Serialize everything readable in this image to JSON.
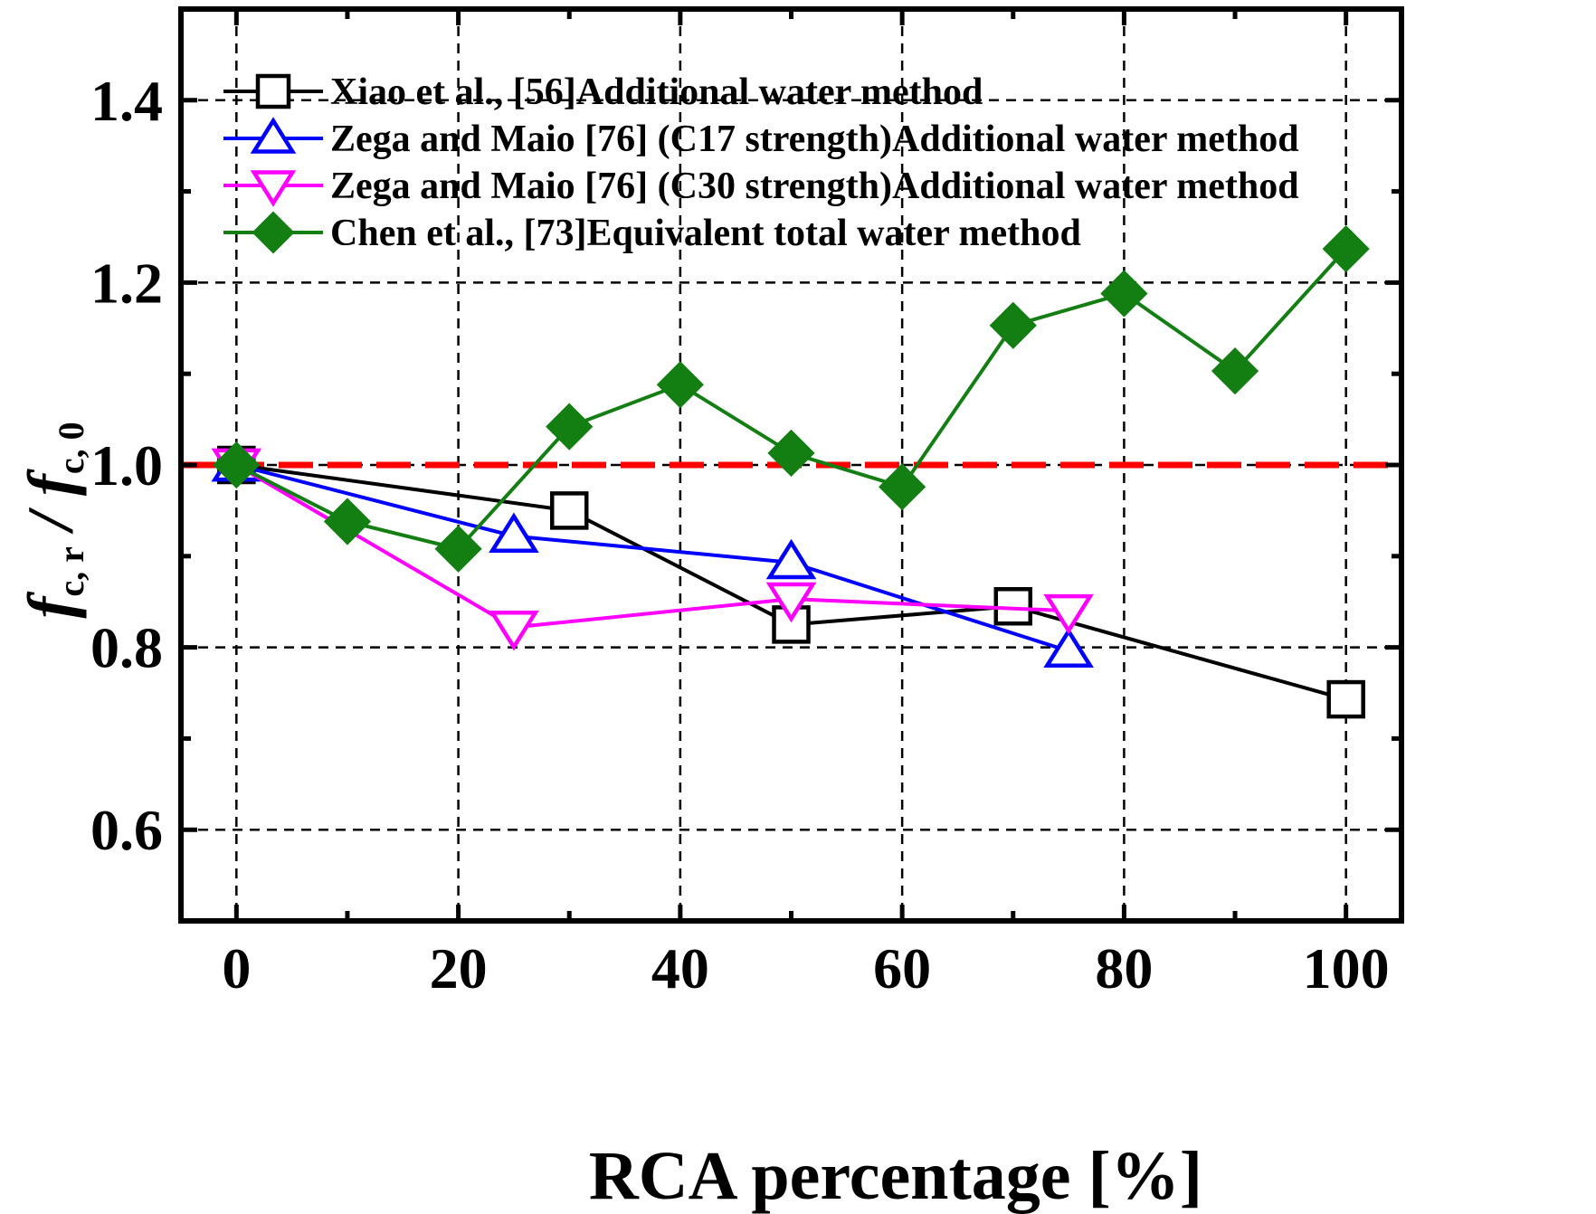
{
  "chart_data": {
    "type": "line",
    "xlabel": "RCA percentage [%]",
    "ylabel": {
      "main1": "f",
      "sub1": "c, r",
      "sep": " / ",
      "main2": "f",
      "sub2": "c, 0"
    },
    "xlim": [
      -5,
      105
    ],
    "ylim": [
      0.5,
      1.5
    ],
    "x_ticks": [
      0,
      20,
      40,
      60,
      80,
      100
    ],
    "x_tick_labels": [
      "0",
      "20",
      "40",
      "60",
      "80",
      "100"
    ],
    "y_ticks": [
      0.6,
      0.8,
      1.0,
      1.2,
      1.4
    ],
    "y_tick_labels": [
      "0.6",
      "0.8",
      "1.0",
      "1.2",
      "1.4"
    ],
    "grid": true,
    "legend_position": "top-left",
    "reference_line": {
      "y": 1.0,
      "color": "#ff0000",
      "style": "dashed"
    },
    "series": [
      {
        "name": "Xiao et al., [56]Additional water method",
        "marker": "square-open",
        "color": "#000000",
        "x": [
          0,
          30,
          50,
          70,
          100
        ],
        "y": [
          1.0,
          0.95,
          0.825,
          0.845,
          0.743
        ]
      },
      {
        "name": "Zega and Maio [76] (C17 strength)Additional water method",
        "marker": "triangle-up-open",
        "color": "#0000ff",
        "x": [
          0,
          25,
          50,
          75
        ],
        "y": [
          1.0,
          0.922,
          0.893,
          0.796
        ]
      },
      {
        "name": "Zega and Maio [76] (C30 strength)Additional water method",
        "marker": "triangle-down-open",
        "color": "#ff00ff",
        "x": [
          0,
          25,
          50,
          75
        ],
        "y": [
          1.0,
          0.822,
          0.853,
          0.84
        ]
      },
      {
        "name": "Chen et al., [73]Equivalent total water method",
        "marker": "diamond-filled",
        "color": "#137f13",
        "x": [
          0,
          10,
          20,
          30,
          40,
          50,
          60,
          70,
          80,
          90,
          100
        ],
        "y": [
          1.0,
          0.938,
          0.908,
          1.042,
          1.088,
          1.013,
          0.976,
          1.153,
          1.188,
          1.103,
          1.237
        ]
      }
    ]
  }
}
